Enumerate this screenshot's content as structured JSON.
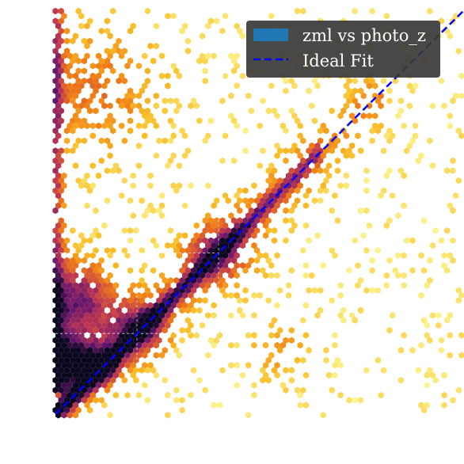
{
  "chart_data": {
    "type": "heatmap",
    "subtype": "hexbin",
    "colormap": "inferno_r",
    "title": "",
    "xlabel": "",
    "ylabel": "",
    "xlim": [
      0.0,
      1.0
    ],
    "ylim": [
      0.0,
      1.0
    ],
    "grid": true,
    "grid_lines": {
      "x": [
        0.2,
        0.4
      ],
      "y": [
        0.2,
        0.4
      ]
    },
    "legend": {
      "placement": "top-right",
      "background": "#3a3a3a",
      "entries": [
        {
          "label": "zml vs photo_z",
          "kind": "patch",
          "color": "#1f77b4"
        },
        {
          "label": "Ideal Fit",
          "kind": "dashed-line",
          "color": "#0000ff"
        }
      ]
    },
    "series": [
      {
        "name": "zml vs photo_z",
        "kind": "hexbin-density",
        "density_clusters": [
          {
            "x": 0.03,
            "y": 0.13,
            "spread": 0.045,
            "weight": 1.0
          },
          {
            "x": 0.11,
            "y": 0.12,
            "spread": 0.03,
            "weight": 0.7
          },
          {
            "x": 0.05,
            "y": 0.28,
            "spread": 0.07,
            "weight": 0.7
          },
          {
            "x": 0.2,
            "y": 0.21,
            "spread": 0.05,
            "weight": 0.55
          },
          {
            "x": 0.4,
            "y": 0.4,
            "spread": 0.06,
            "weight": 0.45
          },
          {
            "x": 0.1,
            "y": 0.8,
            "spread": 0.1,
            "weight": 0.3
          },
          {
            "x": 0.55,
            "y": 0.16,
            "spread": 0.05,
            "weight": 0.2
          }
        ]
      },
      {
        "name": "Ideal Fit",
        "kind": "line",
        "style": "dashed",
        "color": "#0000ff",
        "x": [
          0.0,
          1.0
        ],
        "y": [
          0.0,
          1.0
        ]
      }
    ]
  }
}
